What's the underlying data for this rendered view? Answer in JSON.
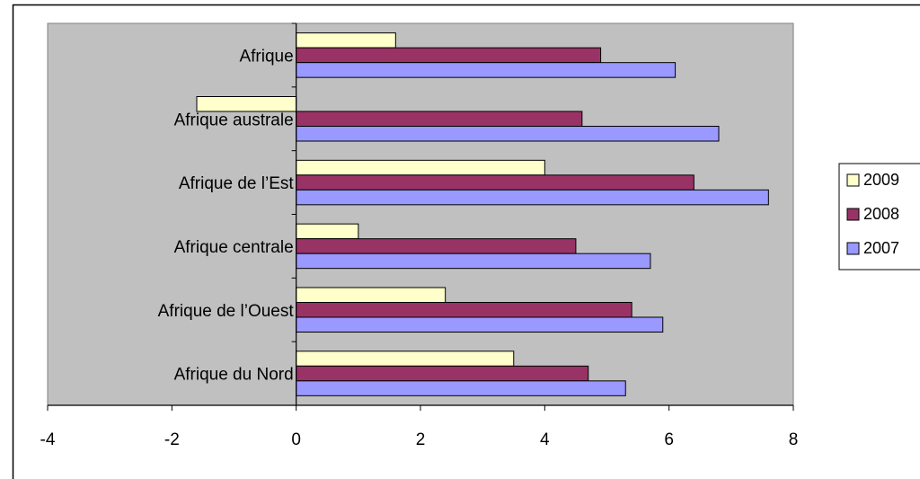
{
  "chart_data": {
    "type": "bar",
    "orientation": "horizontal",
    "categories": [
      "Afrique",
      "Afrique australe",
      "Afrique de l’Est",
      "Afrique centrale",
      "Afrique de l’Ouest",
      "Afrique du Nord"
    ],
    "series": [
      {
        "name": "2009",
        "color": "#ffffcc",
        "values": [
          1.6,
          -1.6,
          4.0,
          1.0,
          2.4,
          3.5
        ]
      },
      {
        "name": "2008",
        "color": "#993366",
        "values": [
          4.9,
          4.6,
          6.4,
          4.5,
          5.4,
          4.7
        ]
      },
      {
        "name": "2007",
        "color": "#9999ff",
        "values": [
          6.1,
          6.8,
          7.6,
          5.7,
          5.9,
          5.3
        ]
      }
    ],
    "xlim": [
      -4,
      8
    ],
    "x_ticks": [
      "-4",
      "-2",
      "0",
      "2",
      "4",
      "6",
      "8"
    ],
    "legend_order": [
      "2009",
      "2008",
      "2007"
    ],
    "legend_position": "right",
    "plot_background": "#c0c0c0",
    "grid": false
  }
}
